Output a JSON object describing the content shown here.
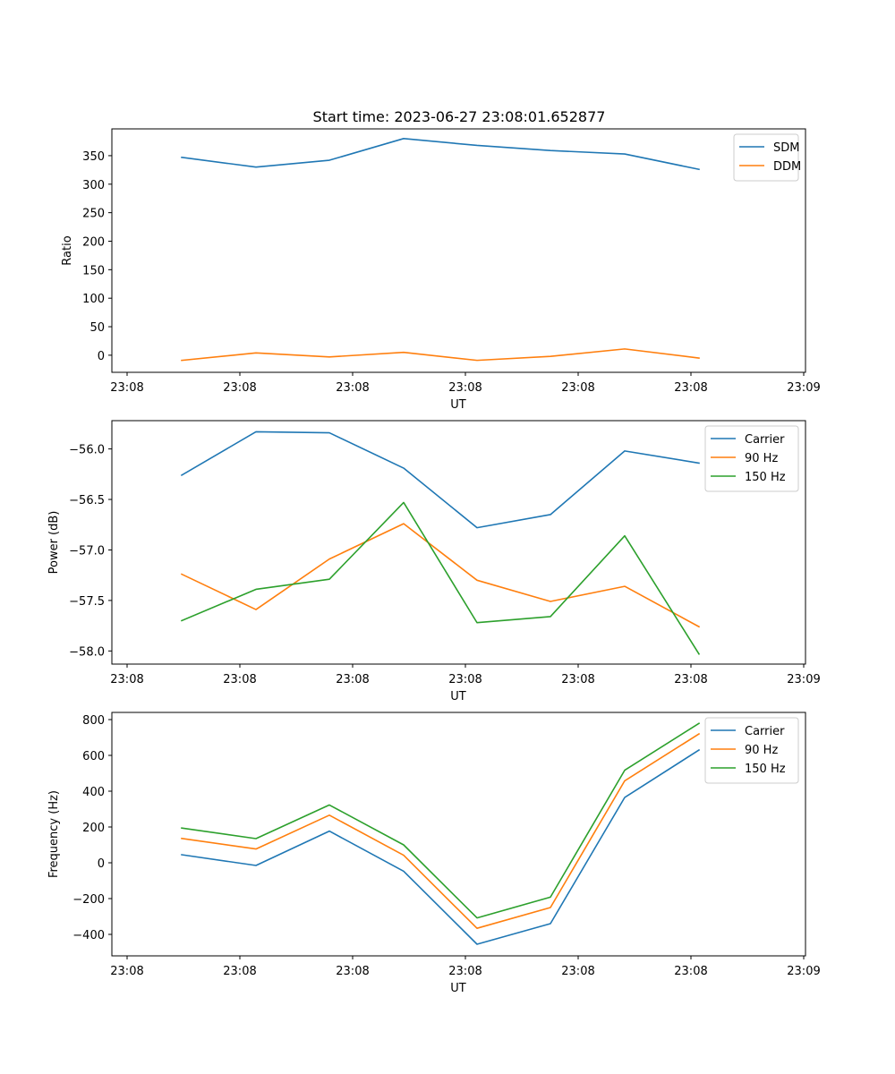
{
  "figure": {
    "title": "Start time: 2023-06-27 23:08:01.652877"
  },
  "colors": {
    "blue": "#1f77b4",
    "orange": "#ff7f0e",
    "green": "#2ca02c"
  },
  "chart_data": [
    {
      "type": "line",
      "title": "Start time: 2023-06-27 23:08:01.652877",
      "xlabel": "UT",
      "ylabel": "Ratio",
      "x_tick_labels": [
        "23:08",
        "23:08",
        "23:08",
        "23:08",
        "23:08",
        "23:08",
        "23:09"
      ],
      "y_ticks": [
        0,
        50,
        100,
        150,
        200,
        250,
        300,
        350
      ],
      "ylim": [
        -30,
        397
      ],
      "legend_position": "top-right",
      "grid": false,
      "series": [
        {
          "name": "SDM",
          "color": "#1f77b4",
          "values": [
            347,
            330,
            342,
            380,
            368,
            359,
            353,
            326
          ]
        },
        {
          "name": "DDM",
          "color": "#ff7f0e",
          "values": [
            -9,
            4,
            -3,
            5,
            -9,
            -2,
            11,
            -5
          ]
        }
      ]
    },
    {
      "type": "line",
      "title": "",
      "xlabel": "UT",
      "ylabel": "Power (dB)",
      "x_tick_labels": [
        "23:08",
        "23:08",
        "23:08",
        "23:08",
        "23:08",
        "23:08",
        "23:09"
      ],
      "y_ticks": [
        -58.0,
        -57.5,
        -57.0,
        -56.5,
        -56.0
      ],
      "y_tick_labels": [
        "−58.0",
        "−57.5",
        "−57.0",
        "−56.5",
        "−56.0"
      ],
      "ylim": [
        -58.13,
        -55.72
      ],
      "legend_position": "top-right",
      "grid": false,
      "series": [
        {
          "name": "Carrier",
          "color": "#1f77b4",
          "values": [
            -56.26,
            -55.83,
            -55.84,
            -56.19,
            -56.78,
            -56.65,
            -56.02,
            -56.14
          ]
        },
        {
          "name": "90 Hz",
          "color": "#ff7f0e",
          "values": [
            -57.24,
            -57.59,
            -57.09,
            -56.74,
            -57.3,
            -57.51,
            -57.36,
            -57.76
          ]
        },
        {
          "name": "150 Hz",
          "color": "#2ca02c",
          "values": [
            -57.7,
            -57.39,
            -57.29,
            -56.53,
            -57.72,
            -57.66,
            -56.86,
            -58.03
          ]
        }
      ]
    },
    {
      "type": "line",
      "title": "",
      "xlabel": "UT",
      "ylabel": "Frequency (Hz)",
      "x_tick_labels": [
        "23:08",
        "23:08",
        "23:08",
        "23:08",
        "23:08",
        "23:08",
        "23:09"
      ],
      "y_ticks": [
        -400,
        -200,
        0,
        200,
        400,
        600,
        800
      ],
      "y_tick_labels": [
        "−400",
        "−200",
        "0",
        "200",
        "400",
        "600",
        "800"
      ],
      "ylim": [
        -520,
        840
      ],
      "legend_position": "top-right",
      "grid": false,
      "series": [
        {
          "name": "Carrier",
          "color": "#1f77b4",
          "values": [
            45,
            -15,
            177,
            -47,
            -455,
            -340,
            365,
            630
          ]
        },
        {
          "name": "90 Hz",
          "color": "#ff7f0e",
          "values": [
            136,
            77,
            266,
            42,
            -366,
            -250,
            458,
            720
          ]
        },
        {
          "name": "150 Hz",
          "color": "#2ca02c",
          "values": [
            194,
            135,
            323,
            100,
            -308,
            -192,
            517,
            779
          ]
        }
      ]
    }
  ]
}
